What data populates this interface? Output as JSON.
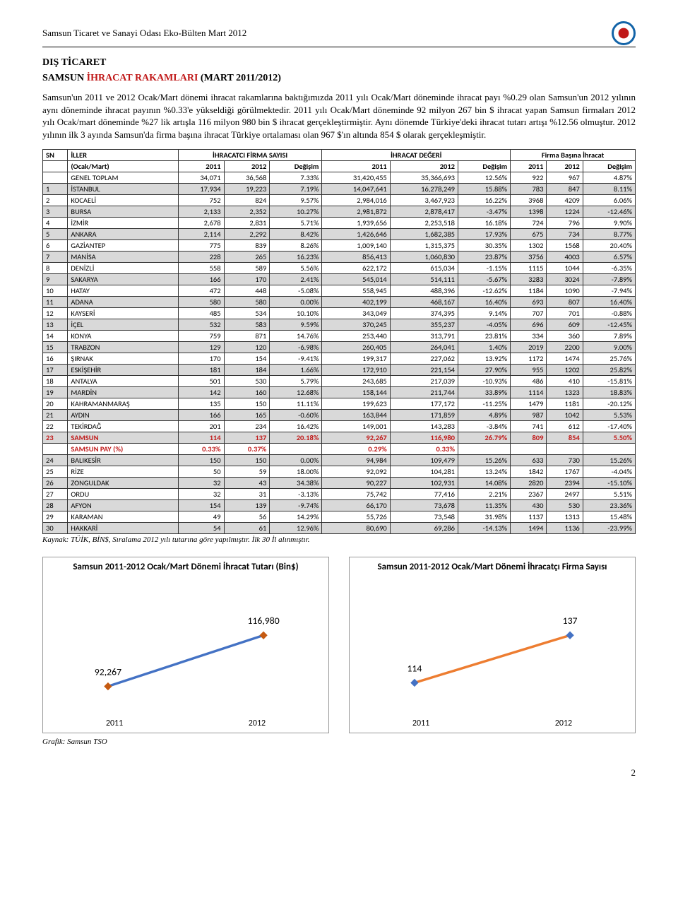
{
  "header": {
    "title": "Samsun Ticaret ve Sanayi Odası Eko-Bülten Mart 2012"
  },
  "section_title": "DIŞ TİCARET",
  "subtitle_prefix": "SAMSUN ",
  "subtitle_red": "İHRACAT RAKAMLARI ",
  "subtitle_suffix": "(MART 2011/2012)",
  "body_text": "Samsun'un 2011 ve 2012 Ocak/Mart dönemi ihracat rakamlarına baktığımızda 2011 yılı Ocak/Mart döneminde ihracat payı %0.29 olan Samsun'un 2012 yılının aynı döneminde ihracat payının %0.33'e yükseldiği görülmektedir. 2011 yılı Ocak/Mart döneminde 92 milyon 267 bin $ ihracat yapan Samsun firmaları 2012 yılı Ocak/mart döneminde %27 lik artışla 116 milyon 980 bin $ ihracat gerçekleştirmiştir. Aynı dönemde Türkiye'deki ihracat tutarı artışı %12.56 olmuştur. 2012 yılının ilk 3 ayında Samsun'da firma başına ihracat Türkiye ortalaması olan 967 $'ın altında 854 $ olarak gerçekleşmiştir.",
  "table": {
    "head_groups": {
      "sn": "SN",
      "iller": "İLLER",
      "ihracatci": "İHRACATCI FİRMA SAYISI",
      "ihracat_deger": "İHRACAT DEĞERİ",
      "firma_basina": "Firma Başına İhracat"
    },
    "subhead": {
      "period": "(Ocak/Mart)",
      "y2011": "2011",
      "y2012": "2012",
      "degisim": "Değişim"
    },
    "rows": [
      {
        "sn": "",
        "il": "GENEL TOPLAM",
        "f11": "34,071",
        "f12": "36,568",
        "fd": "7.33%",
        "v11": "31,420,455",
        "v12": "35,366,693",
        "vd": "12.56%",
        "p11": "922",
        "p12": "967",
        "pd": "4.87%",
        "shade": false
      },
      {
        "sn": "1",
        "il": "İSTANBUL",
        "f11": "17,934",
        "f12": "19,223",
        "fd": "7.19%",
        "v11": "14,047,641",
        "v12": "16,278,249",
        "vd": "15.88%",
        "p11": "783",
        "p12": "847",
        "pd": "8.11%",
        "shade": true
      },
      {
        "sn": "2",
        "il": "KOCAELİ",
        "f11": "752",
        "f12": "824",
        "fd": "9.57%",
        "v11": "2,984,016",
        "v12": "3,467,923",
        "vd": "16.22%",
        "p11": "3968",
        "p12": "4209",
        "pd": "6.06%",
        "shade": false
      },
      {
        "sn": "3",
        "il": "BURSA",
        "f11": "2,133",
        "f12": "2,352",
        "fd": "10.27%",
        "v11": "2,981,872",
        "v12": "2,878,417",
        "vd": "-3.47%",
        "p11": "1398",
        "p12": "1224",
        "pd": "-12.46%",
        "shade": true
      },
      {
        "sn": "4",
        "il": "İZMİR",
        "f11": "2,678",
        "f12": "2,831",
        "fd": "5.71%",
        "v11": "1,939,656",
        "v12": "2,253,518",
        "vd": "16.18%",
        "p11": "724",
        "p12": "796",
        "pd": "9.90%",
        "shade": false
      },
      {
        "sn": "5",
        "il": "ANKARA",
        "f11": "2,114",
        "f12": "2,292",
        "fd": "8.42%",
        "v11": "1,426,646",
        "v12": "1,682,385",
        "vd": "17.93%",
        "p11": "675",
        "p12": "734",
        "pd": "8.77%",
        "shade": true
      },
      {
        "sn": "6",
        "il": "GAZİANTEP",
        "f11": "775",
        "f12": "839",
        "fd": "8.26%",
        "v11": "1,009,140",
        "v12": "1,315,375",
        "vd": "30.35%",
        "p11": "1302",
        "p12": "1568",
        "pd": "20.40%",
        "shade": false
      },
      {
        "sn": "7",
        "il": "MANİSA",
        "f11": "228",
        "f12": "265",
        "fd": "16.23%",
        "v11": "856,413",
        "v12": "1,060,830",
        "vd": "23.87%",
        "p11": "3756",
        "p12": "4003",
        "pd": "6.57%",
        "shade": true
      },
      {
        "sn": "8",
        "il": "DENİZLİ",
        "f11": "558",
        "f12": "589",
        "fd": "5.56%",
        "v11": "622,172",
        "v12": "615,034",
        "vd": "-1.15%",
        "p11": "1115",
        "p12": "1044",
        "pd": "-6.35%",
        "shade": false
      },
      {
        "sn": "9",
        "il": "SAKARYA",
        "f11": "166",
        "f12": "170",
        "fd": "2.41%",
        "v11": "545,014",
        "v12": "514,111",
        "vd": "-5.67%",
        "p11": "3283",
        "p12": "3024",
        "pd": "-7.89%",
        "shade": true
      },
      {
        "sn": "10",
        "il": "HATAY",
        "f11": "472",
        "f12": "448",
        "fd": "-5.08%",
        "v11": "558,945",
        "v12": "488,396",
        "vd": "-12.62%",
        "p11": "1184",
        "p12": "1090",
        "pd": "-7.94%",
        "shade": false
      },
      {
        "sn": "11",
        "il": "ADANA",
        "f11": "580",
        "f12": "580",
        "fd": "0.00%",
        "v11": "402,199",
        "v12": "468,167",
        "vd": "16.40%",
        "p11": "693",
        "p12": "807",
        "pd": "16.40%",
        "shade": true
      },
      {
        "sn": "12",
        "il": "KAYSERİ",
        "f11": "485",
        "f12": "534",
        "fd": "10.10%",
        "v11": "343,049",
        "v12": "374,395",
        "vd": "9.14%",
        "p11": "707",
        "p12": "701",
        "pd": "-0.88%",
        "shade": false
      },
      {
        "sn": "13",
        "il": "İÇEL",
        "f11": "532",
        "f12": "583",
        "fd": "9.59%",
        "v11": "370,245",
        "v12": "355,237",
        "vd": "-4.05%",
        "p11": "696",
        "p12": "609",
        "pd": "-12.45%",
        "shade": true
      },
      {
        "sn": "14",
        "il": "KONYA",
        "f11": "759",
        "f12": "871",
        "fd": "14.76%",
        "v11": "253,440",
        "v12": "313,791",
        "vd": "23.81%",
        "p11": "334",
        "p12": "360",
        "pd": "7.89%",
        "shade": false
      },
      {
        "sn": "15",
        "il": "TRABZON",
        "f11": "129",
        "f12": "120",
        "fd": "-6.98%",
        "v11": "260,405",
        "v12": "264,041",
        "vd": "1.40%",
        "p11": "2019",
        "p12": "2200",
        "pd": "9.00%",
        "shade": true
      },
      {
        "sn": "16",
        "il": "ŞIRNAK",
        "f11": "170",
        "f12": "154",
        "fd": "-9.41%",
        "v11": "199,317",
        "v12": "227,062",
        "vd": "13.92%",
        "p11": "1172",
        "p12": "1474",
        "pd": "25.76%",
        "shade": false
      },
      {
        "sn": "17",
        "il": "ESKİŞEHİR",
        "f11": "181",
        "f12": "184",
        "fd": "1.66%",
        "v11": "172,910",
        "v12": "221,154",
        "vd": "27.90%",
        "p11": "955",
        "p12": "1202",
        "pd": "25.82%",
        "shade": true
      },
      {
        "sn": "18",
        "il": "ANTALYA",
        "f11": "501",
        "f12": "530",
        "fd": "5.79%",
        "v11": "243,685",
        "v12": "217,039",
        "vd": "-10.93%",
        "p11": "486",
        "p12": "410",
        "pd": "-15.81%",
        "shade": false
      },
      {
        "sn": "19",
        "il": "MARDİN",
        "f11": "142",
        "f12": "160",
        "fd": "12.68%",
        "v11": "158,144",
        "v12": "211,744",
        "vd": "33.89%",
        "p11": "1114",
        "p12": "1323",
        "pd": "18.83%",
        "shade": true
      },
      {
        "sn": "20",
        "il": "KAHRAMANMARAŞ",
        "f11": "135",
        "f12": "150",
        "fd": "11.11%",
        "v11": "199,623",
        "v12": "177,172",
        "vd": "-11.25%",
        "p11": "1479",
        "p12": "1181",
        "pd": "-20.12%",
        "shade": false
      },
      {
        "sn": "21",
        "il": "AYDIN",
        "f11": "166",
        "f12": "165",
        "fd": "-0.60%",
        "v11": "163,844",
        "v12": "171,859",
        "vd": "4.89%",
        "p11": "987",
        "p12": "1042",
        "pd": "5.53%",
        "shade": true
      },
      {
        "sn": "22",
        "il": "TEKİRDAĞ",
        "f11": "201",
        "f12": "234",
        "fd": "16.42%",
        "v11": "149,001",
        "v12": "143,283",
        "vd": "-3.84%",
        "p11": "741",
        "p12": "612",
        "pd": "-17.40%",
        "shade": false
      },
      {
        "sn": "23",
        "il": "SAMSUN",
        "f11": "114",
        "f12": "137",
        "fd": "20.18%",
        "v11": "92,267",
        "v12": "116,980",
        "vd": "26.79%",
        "p11": "809",
        "p12": "854",
        "pd": "5.50%",
        "shade": true,
        "highlight": true
      },
      {
        "sn": "",
        "il": "SAMSUN PAY (%)",
        "f11": "0.33%",
        "f12": "0.37%",
        "fd": "",
        "v11": "0.29%",
        "v12": "0.33%",
        "vd": "",
        "p11": "",
        "p12": "",
        "pd": "",
        "shade": false,
        "highlight": true
      },
      {
        "sn": "24",
        "il": "BALIKESİR",
        "f11": "150",
        "f12": "150",
        "fd": "0.00%",
        "v11": "94,984",
        "v12": "109,479",
        "vd": "15.26%",
        "p11": "633",
        "p12": "730",
        "pd": "15.26%",
        "shade": true
      },
      {
        "sn": "25",
        "il": "RİZE",
        "f11": "50",
        "f12": "59",
        "fd": "18.00%",
        "v11": "92,092",
        "v12": "104,281",
        "vd": "13.24%",
        "p11": "1842",
        "p12": "1767",
        "pd": "-4.04%",
        "shade": false
      },
      {
        "sn": "26",
        "il": "ZONGULDAK",
        "f11": "32",
        "f12": "43",
        "fd": "34.38%",
        "v11": "90,227",
        "v12": "102,931",
        "vd": "14.08%",
        "p11": "2820",
        "p12": "2394",
        "pd": "-15.10%",
        "shade": true
      },
      {
        "sn": "27",
        "il": "ORDU",
        "f11": "32",
        "f12": "31",
        "fd": "-3.13%",
        "v11": "75,742",
        "v12": "77,416",
        "vd": "2.21%",
        "p11": "2367",
        "p12": "2497",
        "pd": "5.51%",
        "shade": false
      },
      {
        "sn": "28",
        "il": "AFYON",
        "f11": "154",
        "f12": "139",
        "fd": "-9.74%",
        "v11": "66,170",
        "v12": "73,678",
        "vd": "11.35%",
        "p11": "430",
        "p12": "530",
        "pd": "23.36%",
        "shade": true
      },
      {
        "sn": "29",
        "il": "KARAMAN",
        "f11": "49",
        "f12": "56",
        "fd": "14.29%",
        "v11": "55,726",
        "v12": "73,548",
        "vd": "31.98%",
        "p11": "1137",
        "p12": "1313",
        "pd": "15.48%",
        "shade": false
      },
      {
        "sn": "30",
        "il": "HAKKARİ",
        "f11": "54",
        "f12": "61",
        "fd": "12.96%",
        "v11": "80,690",
        "v12": "69,286",
        "vd": "-14.13%",
        "p11": "1494",
        "p12": "1136",
        "pd": "-23.99%",
        "shade": true
      }
    ]
  },
  "source_note": "Kaynak: TÜİK, BİN$, Sıralama 2012 yılı tutarına göre yapılmıştır. İlk 30 İl alınmıştır.",
  "chart1": {
    "title": "Samsun 2011-2012 Ocak/Mart Dönemi İhracat Tutarı (Bin$)",
    "type": "line",
    "categories": [
      "2011",
      "2012"
    ],
    "values": [
      92267,
      116980
    ],
    "labels": [
      "92,267",
      "116,980"
    ],
    "ylim": [
      80000,
      130000
    ],
    "line_color": "#4472c4",
    "marker_color": "#c55a11",
    "line_width": 3,
    "marker_size": 7,
    "background_color": "#ffffff",
    "label_fontsize": 12
  },
  "chart2": {
    "title": "Samsun 2011-2012 Ocak/Mart Dönemi İhracatçı Firma Sayısı",
    "type": "line",
    "categories": [
      "2011",
      "2012"
    ],
    "values": [
      114,
      137
    ],
    "labels": [
      "114",
      "137"
    ],
    "ylim": [
      100,
      150
    ],
    "line_color": "#ed7d31",
    "marker_color": "#4472c4",
    "line_width": 3,
    "marker_size": 7,
    "background_color": "#ffffff",
    "label_fontsize": 12
  },
  "chart_note": "Grafik: Samsun TSO",
  "page_number": "2"
}
